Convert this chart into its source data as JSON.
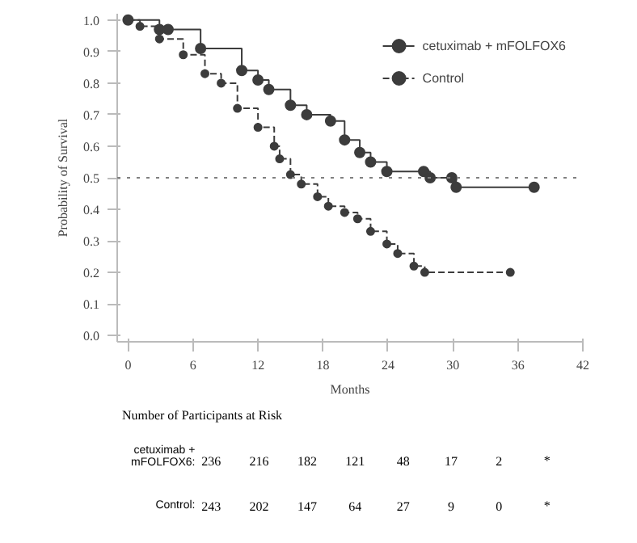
{
  "chart_data": {
    "type": "step",
    "xlabel": "Months",
    "ylabel": "Probability of Survival",
    "xlim": [
      -1,
      42
    ],
    "ylim": [
      -0.02,
      1.02
    ],
    "xticks": [
      0,
      6,
      12,
      18,
      24,
      30,
      36,
      42
    ],
    "yticks": [
      {
        "value": 0,
        "label": "0.0"
      },
      0.1,
      0.2,
      0.3,
      0.4,
      0.5,
      0.6,
      0.7,
      0.8,
      0.9,
      {
        "value": 1,
        "label": "1.0"
      }
    ],
    "grid": false,
    "legend": "top right",
    "marker": "circle",
    "series": [
      {
        "name": "cetuximab + mFOLFOX6",
        "color": "#3c3c3c",
        "line_style": "solid",
        "x": [
          0,
          2.9,
          3.7,
          6.7,
          10.5,
          12.0,
          13.0,
          15.0,
          16.5,
          18.7,
          20.0,
          21.4,
          22.4,
          23.9,
          27.3,
          27.9,
          29.9,
          30.3,
          37.5
        ],
        "values": [
          1.0,
          0.97,
          0.97,
          0.91,
          0.84,
          0.81,
          0.78,
          0.73,
          0.7,
          0.68,
          0.62,
          0.58,
          0.55,
          0.52,
          0.52,
          0.5,
          0.5,
          0.47,
          0.47
        ]
      },
      {
        "name": "Control",
        "color": "#3c3c3c",
        "line_style": "dashed",
        "x": [
          0,
          1.1,
          2.9,
          5.1,
          7.1,
          8.6,
          10.1,
          12.0,
          13.5,
          14.0,
          15.0,
          16.0,
          17.5,
          18.5,
          20.0,
          21.2,
          22.4,
          23.9,
          24.9,
          26.4,
          27.4,
          35.3
        ],
        "values": [
          1.0,
          0.98,
          0.94,
          0.89,
          0.83,
          0.8,
          0.72,
          0.66,
          0.6,
          0.56,
          0.51,
          0.48,
          0.44,
          0.41,
          0.39,
          0.37,
          0.33,
          0.29,
          0.26,
          0.22,
          0.2,
          0.2
        ]
      }
    ],
    "ref_lines": [
      {
        "axis": "y",
        "value": 0.5,
        "line_style": "dotted",
        "color": "#808080"
      }
    ],
    "annotations": [
      "Number of Participants at Risk",
      "cetuximab +\nmFOLFOX6:",
      "236",
      "216",
      "182",
      "121",
      "48",
      "17",
      "2",
      "*",
      "Control:",
      "243",
      "202",
      "147",
      "64",
      "27",
      "9",
      "0",
      "*"
    ]
  }
}
